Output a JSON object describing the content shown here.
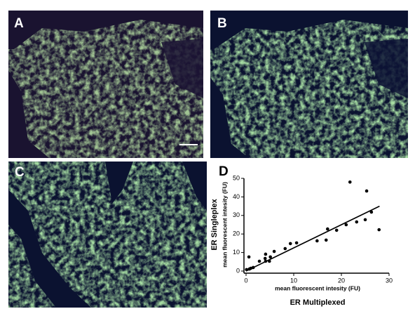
{
  "panels": [
    {
      "label": "A"
    },
    {
      "label": "B"
    },
    {
      "label": "C"
    }
  ],
  "chart_data": {
    "type": "scatter",
    "label": "D",
    "y_title": "ER Singleplex",
    "y_label": "mean fluorescent intesity (FU)",
    "x_label": "mean fluorescent intesity (FU)",
    "x_title": "ER Multiplexed",
    "x": [
      0.1,
      0.6,
      0.7,
      1,
      1.5,
      2.8,
      4,
      4.1,
      4.1,
      4.9,
      5.1,
      5.9,
      8.2,
      9.3,
      10.6,
      14.9,
      16.8,
      17.1,
      19,
      21,
      21.8,
      23.2,
      25,
      25.3,
      26.3,
      27.9
    ],
    "values": [
      0.8,
      7.6,
      1.1,
      1.5,
      1.9,
      5.3,
      6.8,
      9.1,
      5.3,
      5.3,
      7.6,
      10.6,
      12.1,
      14.8,
      15.2,
      16.3,
      16.7,
      22.7,
      22,
      25,
      48,
      26.5,
      27.7,
      43.2,
      31.8,
      22.3
    ],
    "color": "#000000",
    "fit": {
      "x": [
        0,
        28
      ],
      "y": [
        0,
        35
      ]
    },
    "xlim": [
      0,
      30
    ],
    "xticks": [
      0,
      10,
      20,
      30
    ],
    "ylim": [
      0,
      50
    ],
    "yticks": [
      0,
      10,
      20,
      30,
      40,
      50
    ]
  }
}
